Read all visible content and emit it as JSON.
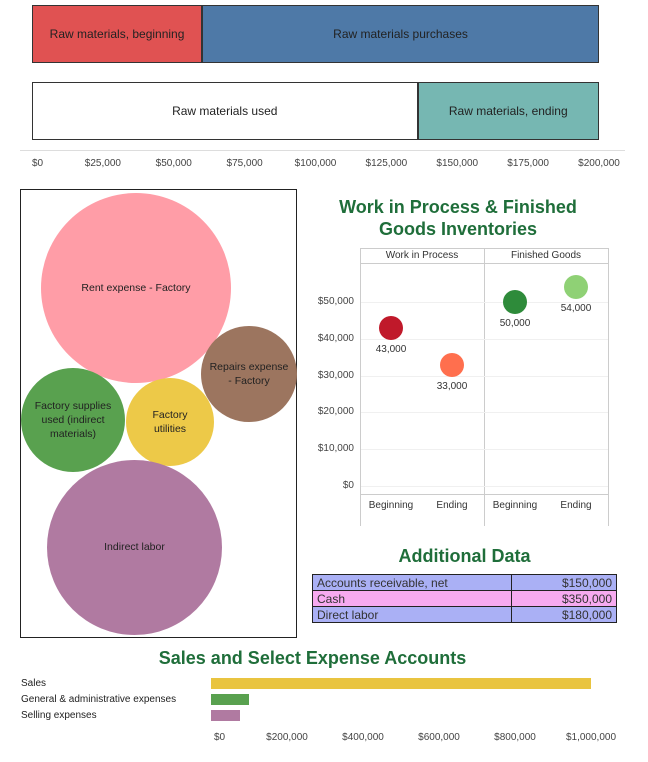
{
  "raw_materials": {
    "segments": [
      {
        "label": "Raw materials, beginning",
        "value": 60000,
        "color": "#e05252"
      },
      {
        "label": "Raw materials purchases",
        "value": 140000,
        "color": "#4e79a7"
      },
      {
        "label": "Raw materials used",
        "value": 136000,
        "color": "#ffffff"
      },
      {
        "label": "Raw materials, ending",
        "value": 64000,
        "color": "#76b7b2"
      }
    ],
    "axis_ticks": [
      "$0",
      "$25,000",
      "$50,000",
      "$75,000",
      "$100,000",
      "$125,000",
      "$150,000",
      "$175,000",
      "$200,000"
    ]
  },
  "overhead_bubbles": [
    {
      "label": "Rent expense - Factory",
      "color": "#ff9da7"
    },
    {
      "label": "Repairs expense - Factory",
      "color": "#9c755f"
    },
    {
      "label": "Factory supplies used (indirect materials)",
      "color": "#59a14f"
    },
    {
      "label": "Factory utilities",
      "color": "#edc948"
    },
    {
      "label": "Indirect labor",
      "color": "#b07aa1"
    }
  ],
  "wip_fg": {
    "title": "Work in Process & Finished Goods Inventories",
    "headers": [
      "Work in Process",
      "Finished Goods"
    ],
    "x_labels": [
      "Beginning",
      "Ending",
      "Beginning",
      "Ending"
    ],
    "y_ticks": [
      "$50,000",
      "$40,000",
      "$30,000",
      "$20,000",
      "$10,000",
      "$0"
    ],
    "points": [
      {
        "value_label": "43,000",
        "value": 43000,
        "color": "#c0192a"
      },
      {
        "value_label": "33,000",
        "value": 33000,
        "color": "#ff6f4e"
      },
      {
        "value_label": "50,000",
        "value": 50000,
        "color": "#2e8b3a"
      },
      {
        "value_label": "54,000",
        "value": 54000,
        "color": "#8fd175"
      }
    ]
  },
  "additional_data": {
    "title": "Additional Data",
    "rows": [
      {
        "label": "Accounts receivable, net",
        "value": "$150,000",
        "color": "#aab0f5"
      },
      {
        "label": "Cash",
        "value": "$350,000",
        "color": "#f7aaf0"
      },
      {
        "label": "Direct labor",
        "value": "$180,000",
        "color": "#aab0f5"
      }
    ]
  },
  "sales_expenses": {
    "title": "Sales and Select Expense Accounts",
    "bars": [
      {
        "label": "Sales",
        "value": 1000000,
        "color": "#e9c440"
      },
      {
        "label": "General & administrative expenses",
        "value": 100000,
        "color": "#59a14f"
      },
      {
        "label": "Selling expenses",
        "value": 75000,
        "color": "#b07aa1"
      }
    ],
    "axis_ticks": [
      "$0",
      "$200,000",
      "$400,000",
      "$600,000",
      "$800,000",
      "$1,000,000"
    ]
  },
  "chart_data": [
    {
      "type": "bar",
      "categories": [
        "Raw materials, beginning",
        "Raw materials purchases",
        "Raw materials used",
        "Raw materials, ending"
      ],
      "values": [
        60000,
        140000,
        136000,
        64000
      ],
      "xlim": [
        0,
        200000
      ]
    },
    {
      "type": "scatter",
      "categories": [
        "Work in Process Beginning",
        "Work in Process Ending",
        "Finished Goods Beginning",
        "Finished Goods Ending"
      ],
      "values": [
        43000,
        33000,
        50000,
        54000
      ]
    },
    {
      "type": "bar",
      "categories": [
        "Sales",
        "General & administrative expenses",
        "Selling expenses"
      ],
      "values": [
        1000000,
        100000,
        75000
      ],
      "xlim": [
        0,
        1000000
      ]
    }
  ]
}
